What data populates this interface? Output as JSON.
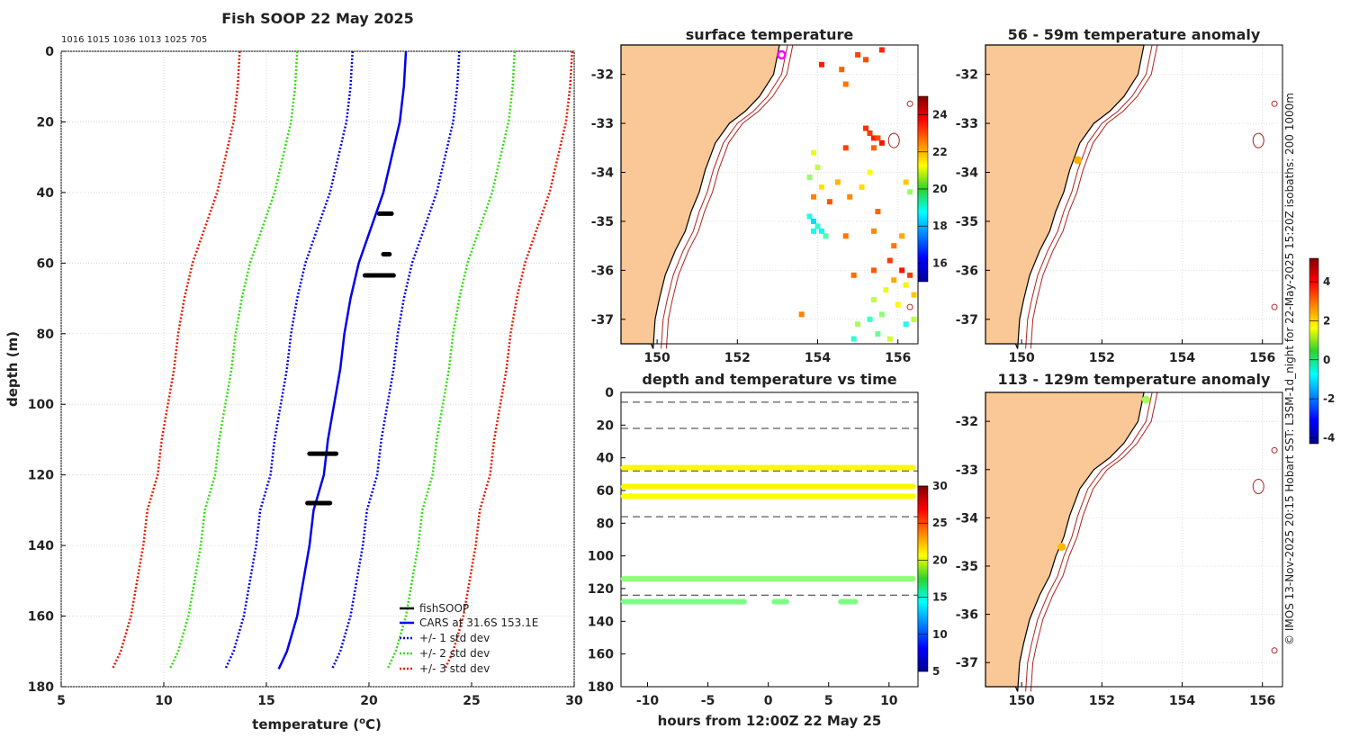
{
  "colors": {
    "land": "#f9c896",
    "isobath": "#b0231f",
    "coast": "#000000",
    "cars": "#0000ee",
    "sd1": "#0000ee",
    "sd2": "#33dd11",
    "sd3": "#e81a00",
    "fish": "#000000",
    "marker_magenta": "#ff00ff",
    "marker_orange": "#ff9900",
    "marker_green": "#11cc22"
  },
  "chart_data": [
    {
      "type": "line",
      "title": "Fish SOOP 22 May 2025",
      "subtitle": "1016 1015 1036 1013 1025 705",
      "xlabel_pre": "temperature (",
      "xlabel_sup": "o",
      "xlabel_post": "C)",
      "ylabel": "depth (m)",
      "xlim": [
        5,
        30
      ],
      "ylim": [
        180,
        0
      ],
      "xticks": [
        5,
        10,
        15,
        20,
        25,
        30
      ],
      "yticks": [
        0,
        20,
        40,
        60,
        80,
        100,
        120,
        140,
        160,
        180
      ],
      "grid": true,
      "legend_position": "bottom-right",
      "depths": [
        0,
        10,
        20,
        30,
        40,
        50,
        60,
        70,
        80,
        90,
        100,
        110,
        120,
        130,
        140,
        150,
        160,
        170,
        175
      ],
      "cars_mean": [
        21.8,
        21.7,
        21.5,
        21.1,
        20.7,
        20.1,
        19.5,
        19.1,
        18.8,
        18.6,
        18.3,
        18.0,
        17.8,
        17.3,
        17.1,
        16.8,
        16.5,
        16.0,
        15.6
      ],
      "series": [
        {
          "name": "+/- 3 std dev",
          "style": "sd3",
          "offset": 8.1
        },
        {
          "name": "+/- 2 std dev",
          "style": "sd2",
          "offset": 5.3
        },
        {
          "name": "+/- 1 std dev",
          "style": "sd1",
          "offset": 2.6
        }
      ],
      "fish_segments": [
        {
          "depth": 46,
          "t_from": 20.5,
          "t_to": 21.1
        },
        {
          "depth": 57.5,
          "t_from": 20.7,
          "t_to": 21.0
        },
        {
          "depth": 63.5,
          "t_from": 19.8,
          "t_to": 21.2
        },
        {
          "depth": 114,
          "t_from": 17.1,
          "t_to": 18.4
        },
        {
          "depth": 128,
          "t_from": 17.0,
          "t_to": 18.1
        }
      ],
      "legend": [
        "fishSOOP",
        "CARS at 31.6S 153.1E",
        "+/- 1 std dev",
        "+/- 2 std dev",
        "+/- 3 std dev"
      ]
    },
    {
      "type": "heatmap",
      "title": "surface temperature",
      "xticks": [
        150,
        152,
        154,
        156
      ],
      "yticks": [
        -32,
        -33,
        -34,
        -35,
        -36,
        -37
      ],
      "xlim": [
        149.1,
        156.5
      ],
      "ylim": [
        -37.5,
        -31.4
      ],
      "colorbar": {
        "min": 15,
        "max": 25,
        "ticks": [
          16,
          18,
          20,
          22,
          24
        ]
      },
      "marker": {
        "lon": 153.1,
        "lat": -31.6,
        "style": "ring"
      },
      "cells": [
        [
          154.1,
          -31.8,
          23.5
        ],
        [
          154.6,
          -31.9,
          22.8
        ],
        [
          155.2,
          -31.7,
          23.0
        ],
        [
          155.6,
          -31.5,
          23.4
        ],
        [
          154.7,
          -32.2,
          22.6
        ],
        [
          155.0,
          -31.6,
          23.1
        ],
        [
          155.3,
          -33.2,
          23.2
        ],
        [
          155.4,
          -33.3,
          23.5
        ],
        [
          155.5,
          -33.3,
          23.0
        ],
        [
          155.4,
          -33.5,
          22.8
        ],
        [
          155.2,
          -33.1,
          23.3
        ],
        [
          155.6,
          -33.4,
          23.6
        ],
        [
          153.9,
          -33.6,
          21.0
        ],
        [
          154.0,
          -33.9,
          20.6
        ],
        [
          153.8,
          -34.1,
          20.2
        ],
        [
          154.1,
          -34.3,
          21.5
        ],
        [
          153.9,
          -34.5,
          22.5
        ],
        [
          154.5,
          -34.2,
          22.0
        ],
        [
          154.3,
          -34.6,
          22.9
        ],
        [
          154.8,
          -34.5,
          22.4
        ],
        [
          155.1,
          -34.3,
          21.6
        ],
        [
          155.5,
          -34.8,
          22.8
        ],
        [
          155.3,
          -34.0,
          21.2
        ],
        [
          156.2,
          -34.2,
          21.8
        ],
        [
          156.3,
          -34.4,
          20.2
        ],
        [
          154.7,
          -33.5,
          23.1
        ],
        [
          153.8,
          -34.9,
          19.0
        ],
        [
          153.9,
          -35.0,
          18.4
        ],
        [
          154.0,
          -35.1,
          19.2
        ],
        [
          154.1,
          -35.2,
          18.8
        ],
        [
          154.2,
          -35.3,
          19.5
        ],
        [
          153.9,
          -35.2,
          18.9
        ],
        [
          154.7,
          -35.3,
          22.6
        ],
        [
          155.4,
          -35.2,
          22.4
        ],
        [
          155.9,
          -35.5,
          22.6
        ],
        [
          156.1,
          -35.3,
          22.1
        ],
        [
          155.8,
          -35.8,
          23.2
        ],
        [
          155.4,
          -36.0,
          22.9
        ],
        [
          156.1,
          -36.0,
          23.6
        ],
        [
          156.3,
          -36.1,
          23.2
        ],
        [
          155.9,
          -36.2,
          22.1
        ],
        [
          156.2,
          -36.3,
          21.4
        ],
        [
          155.7,
          -36.4,
          21.0
        ],
        [
          156.4,
          -36.5,
          21.8
        ],
        [
          155.4,
          -36.6,
          20.6
        ],
        [
          156.0,
          -36.7,
          21.3
        ],
        [
          155.6,
          -36.9,
          20.1
        ],
        [
          155.3,
          -37.0,
          19.4
        ],
        [
          155.0,
          -37.1,
          20.4
        ],
        [
          155.5,
          -37.3,
          19.8
        ],
        [
          156.2,
          -37.1,
          19.0
        ],
        [
          154.9,
          -37.4,
          19.2
        ],
        [
          155.8,
          -37.4,
          20.8
        ],
        [
          156.4,
          -37.0,
          20.5
        ],
        [
          153.6,
          -36.9,
          22.5
        ],
        [
          154.9,
          -36.1,
          22.7
        ]
      ]
    },
    {
      "type": "scatter",
      "title": "depth and temperature vs time",
      "xlabel": "hours from 12:00Z 22 May 25",
      "xlim": [
        -12.2,
        12.4
      ],
      "ylim": [
        180,
        0
      ],
      "xticks": [
        -10,
        -5,
        0,
        5,
        10
      ],
      "yticks": [
        0,
        20,
        40,
        60,
        80,
        100,
        120,
        140,
        160,
        180
      ],
      "dashed_depths": [
        6,
        22,
        48,
        76,
        124
      ],
      "colorbar": {
        "min": 5,
        "max": 30,
        "ticks": [
          5,
          10,
          15,
          20,
          25,
          30
        ]
      },
      "tracks": [
        {
          "depth": 46,
          "t0": -12,
          "t1": 12,
          "temp": 20.8
        },
        {
          "depth": 57.5,
          "t0": -12,
          "t1": 12,
          "temp": 20.9
        },
        {
          "depth": 63.5,
          "t0": -12,
          "t1": 12,
          "temp": 20.5
        },
        {
          "depth": 114,
          "t0": -12,
          "t1": 12,
          "temp": 17.8
        },
        {
          "depth": 128,
          "t0": -12,
          "t1": -2,
          "temp": 17.4
        },
        {
          "depth": 128,
          "t0": 0.5,
          "t1": 1.5,
          "temp": 17.4
        },
        {
          "depth": 128,
          "t0": 6.0,
          "t1": 7.2,
          "temp": 17.4
        }
      ]
    },
    {
      "type": "scatter",
      "title": "56 - 59m temperature anomaly",
      "xticks": [
        150,
        152,
        154,
        156
      ],
      "yticks": [
        -32,
        -33,
        -34,
        -35,
        -36,
        -37
      ],
      "points": [
        {
          "lon": 151.4,
          "lat": -33.75,
          "anomaly": 2.4
        }
      ]
    },
    {
      "type": "scatter",
      "title": "113 - 129m temperature anomaly",
      "xticks": [
        150,
        152,
        154,
        156
      ],
      "yticks": [
        -32,
        -33,
        -34,
        -35,
        -36,
        -37
      ],
      "points": [
        {
          "lon": 151.0,
          "lat": -34.6,
          "anomaly": 2.3
        },
        {
          "lon": 153.1,
          "lat": -31.55,
          "anomaly": 0.8
        }
      ]
    }
  ],
  "anomaly_colorbar": {
    "min": -4.3,
    "max": 5.2,
    "ticks": [
      "4",
      "2",
      "0",
      "-2",
      "-4"
    ],
    "tick_values": [
      4,
      2,
      0,
      -2,
      -4
    ]
  },
  "side_note": "© IMOS 13-Nov-2025 20:15 Hobart SST: L3SM-1d_night for 22-May-2025 15:20Z isobaths: 200  1000m"
}
